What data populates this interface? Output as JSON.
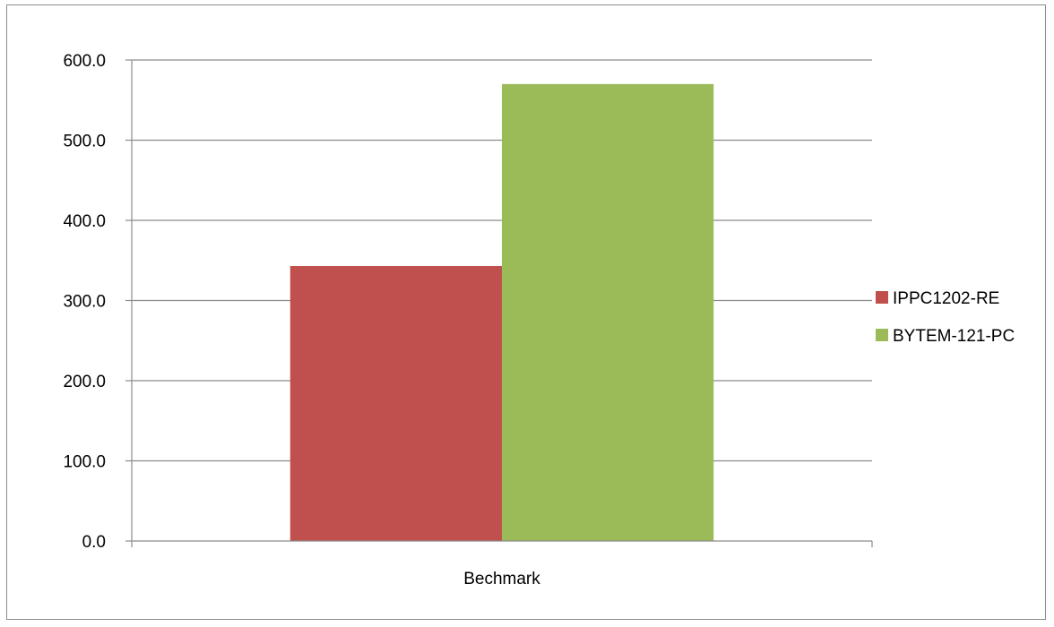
{
  "chart_data": {
    "type": "bar",
    "categories": [
      "Bechmark"
    ],
    "series": [
      {
        "name": "IPPC1202-RE",
        "values": [
          343
        ],
        "color": "#c0504d"
      },
      {
        "name": "BYTEM-121-PC",
        "values": [
          570
        ],
        "color": "#9bbb59"
      }
    ],
    "ylim": [
      0,
      600
    ],
    "yticks": [
      0,
      100,
      200,
      300,
      400,
      500,
      600
    ],
    "ytick_format_decimals": 1,
    "grid": true,
    "legend_position": "right"
  }
}
